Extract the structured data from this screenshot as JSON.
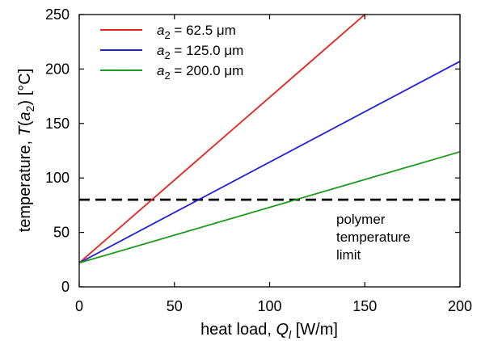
{
  "chart_data": {
    "type": "line",
    "xlabel_main": "heat load, ",
    "xlabel_var": "Q",
    "xlabel_sub": "l",
    "xlabel_unit": " [W/m]",
    "ylabel_main": "temperature, ",
    "ylabel_var": "T",
    "ylabel_arg_open": "(",
    "ylabel_arg_var": "a",
    "ylabel_arg_sub": "2",
    "ylabel_arg_close": ")",
    "ylabel_unit": " [°C]",
    "xlim": [
      0,
      200
    ],
    "ylim": [
      0,
      250
    ],
    "xticks": [
      0,
      50,
      100,
      150,
      200
    ],
    "yticks": [
      0,
      50,
      100,
      150,
      200,
      250
    ],
    "grid": false,
    "legend_position": "top-left",
    "series": [
      {
        "var": "a",
        "sub": "2",
        "eq": " = 62.5 μm",
        "color": "#e8231f",
        "x": [
          0,
          150
        ],
        "y": [
          22,
          250
        ]
      },
      {
        "var": "a",
        "sub": "2",
        "eq": " = 125.0 μm",
        "color": "#1f1fe0",
        "x": [
          0,
          200
        ],
        "y": [
          22,
          207
        ]
      },
      {
        "var": "a",
        "sub": "2",
        "eq": " = 200.0 μm",
        "color": "#1f9a1f",
        "x": [
          0,
          200
        ],
        "y": [
          22,
          124
        ]
      }
    ],
    "reference_line": {
      "y": 80,
      "style": "dashed",
      "color": "#000000"
    },
    "annotation": {
      "lines": [
        "polymer",
        "temperature",
        "limit"
      ]
    }
  }
}
